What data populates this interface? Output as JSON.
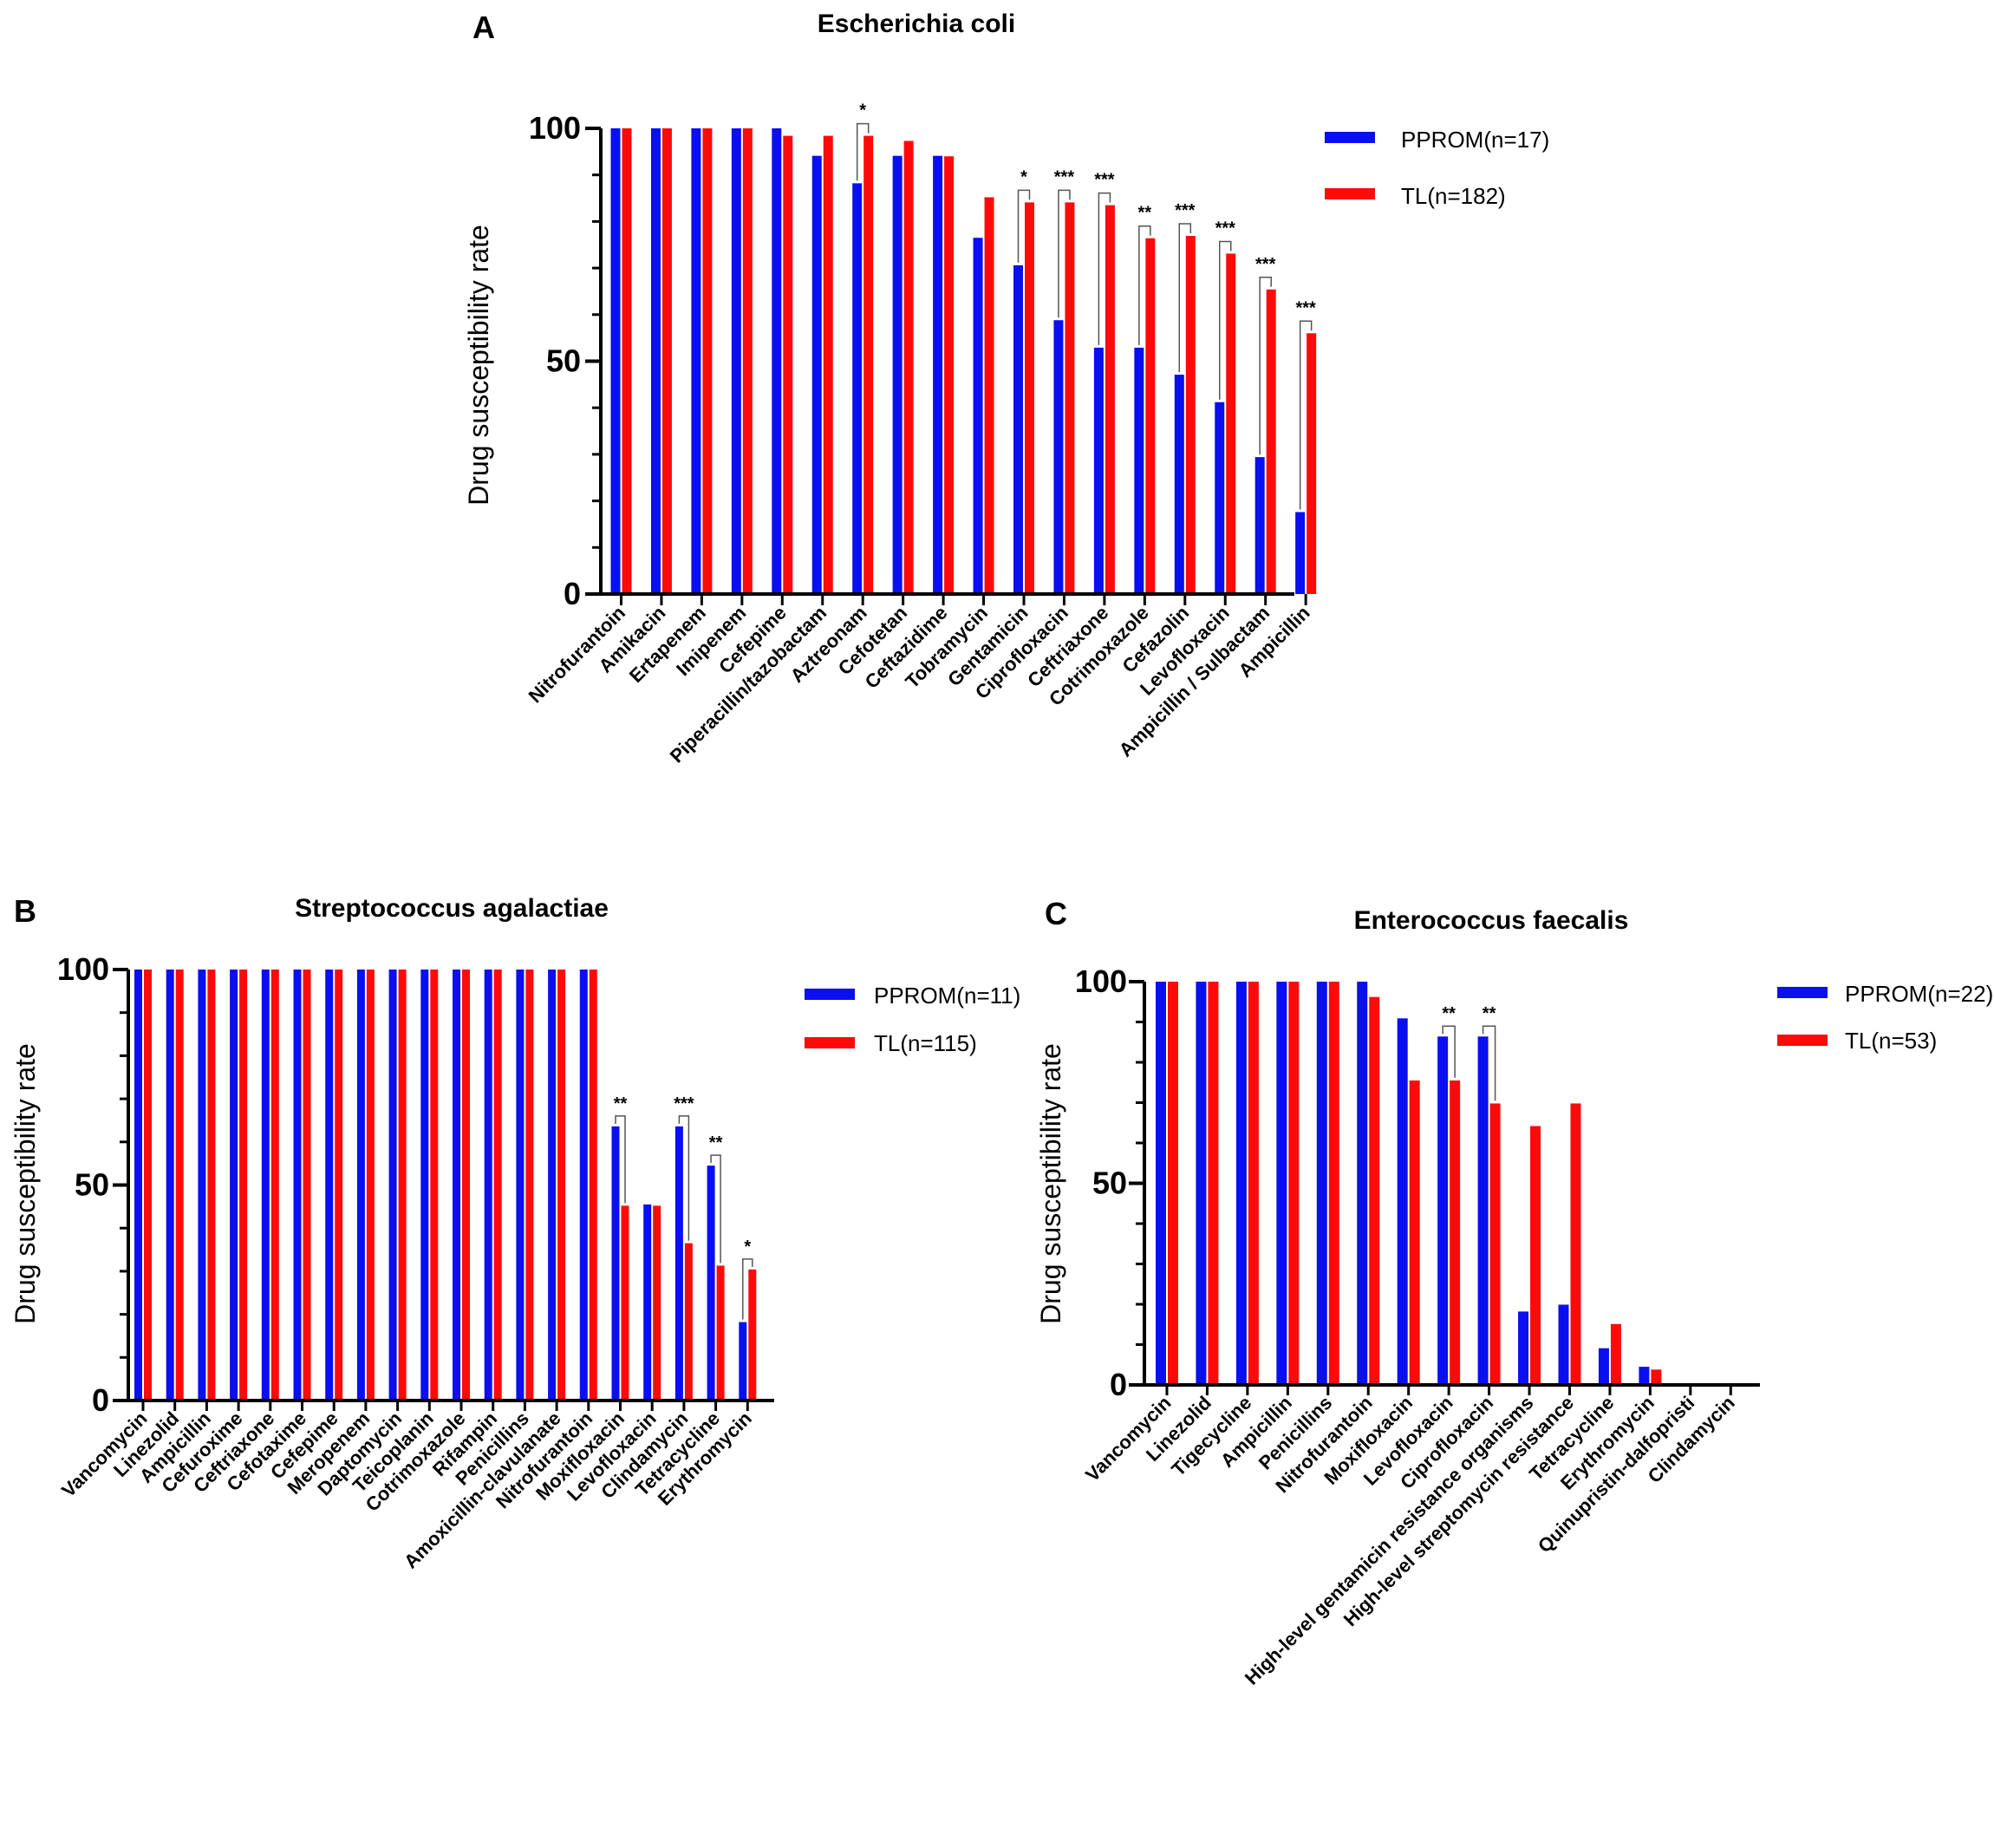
{
  "colors": {
    "series1": "#0a0ff0",
    "series2": "#ff0a0a",
    "axis": "#000000"
  },
  "charts": [
    {
      "panel": "A",
      "type": "bar",
      "title": "Escherichia coli",
      "ylabel": "Drug susceptibility rate",
      "xlabel": "",
      "ylim": [
        0,
        100
      ],
      "yticks": [
        0,
        50,
        100
      ],
      "series": [
        {
          "name": "PPROM(n=17)",
          "color": "#0a0ff0",
          "values": [
            100,
            100,
            100,
            100,
            100,
            94.1,
            88.2,
            94.1,
            94.1,
            76.5,
            70.6,
            58.8,
            52.9,
            52.9,
            47.1,
            41.2,
            29.4,
            17.6
          ]
        },
        {
          "name": "TL(n=182)",
          "color": "#ff0a0a",
          "values": [
            100,
            100,
            100,
            100,
            98.4,
            98.4,
            98.4,
            97.3,
            94.0,
            85.2,
            84.1,
            84.1,
            83.5,
            76.4,
            76.9,
            73.1,
            65.4,
            56.0
          ]
        }
      ],
      "categories": [
        "Nitrofurantoin",
        "Amikacin",
        "Ertapenem",
        "Imipenem",
        "Cefepime",
        "Piperacillin/tazobactam",
        "Aztreonam",
        "Cefotetan",
        "Ceftazidime",
        "Tobramycin",
        "Gentamicin",
        "Ciprofloxacin",
        "Ceftriaxone",
        "Cotrimoxazole",
        "Cefazolin",
        "Levofloxacin",
        "Ampicillin / Sulbactam",
        "Ampicillin"
      ],
      "significance": [
        {
          "index": 6,
          "label": "*"
        },
        {
          "index": 10,
          "label": "*"
        },
        {
          "index": 11,
          "label": "***"
        },
        {
          "index": 12,
          "label": "***"
        },
        {
          "index": 13,
          "label": "**"
        },
        {
          "index": 14,
          "label": "***"
        },
        {
          "index": 15,
          "label": "***"
        },
        {
          "index": 16,
          "label": "***"
        },
        {
          "index": 17,
          "label": "***"
        }
      ],
      "legend_position": "top-right"
    },
    {
      "panel": "B",
      "type": "bar",
      "title": "Streptococcus agalactiae",
      "ylabel": "Drug susceptibility rate",
      "xlabel": "",
      "ylim": [
        0,
        100
      ],
      "yticks": [
        0,
        50,
        100
      ],
      "series": [
        {
          "name": "PPROM(n=11)",
          "color": "#0a0ff0",
          "values": [
            100,
            100,
            100,
            100,
            100,
            100,
            100,
            100,
            100,
            100,
            100,
            100,
            100,
            100,
            100,
            63.6,
            45.5,
            63.6,
            54.5,
            18.2
          ]
        },
        {
          "name": "TL(n=115)",
          "color": "#ff0a0a",
          "values": [
            100,
            100,
            100,
            100,
            100,
            100,
            100,
            100,
            100,
            100,
            100,
            100,
            100,
            100,
            100,
            45.2,
            45.2,
            36.5,
            31.3,
            30.4
          ]
        }
      ],
      "categories": [
        "Vancomycin",
        "Linezolid",
        "Ampicillin",
        "Cefuroxime",
        "Ceftriaxone",
        "Cefotaxime",
        "Cefepime",
        "Meropenem",
        "Daptomycin",
        "Teicoplanin",
        "Cotrimoxazole",
        "Rifampin",
        "Penicillins",
        "Amoxicillin-clavulanate",
        "Nitrofurantoin",
        "Moxifloxacin",
        "Levofloxacin",
        "Clindamycin",
        "Tetracycline",
        "Erythromycin"
      ],
      "significance": [
        {
          "index": 15,
          "label": "**"
        },
        {
          "index": 17,
          "label": "***"
        },
        {
          "index": 18,
          "label": "**"
        },
        {
          "index": 19,
          "label": "*"
        }
      ],
      "legend_position": "top-right"
    },
    {
      "panel": "C",
      "type": "bar",
      "title": "Enterococcus faecalis",
      "ylabel": "Drug susceptibility rate",
      "xlabel": "",
      "ylim": [
        0,
        100
      ],
      "yticks": [
        0,
        50,
        100
      ],
      "series": [
        {
          "name": "PPROM(n=22)",
          "color": "#0a0ff0",
          "values": [
            100,
            100,
            100,
            100,
            100,
            100,
            90.9,
            86.4,
            86.4,
            18.2,
            19.9,
            9.1,
            4.5,
            0,
            0
          ]
        },
        {
          "name": "TL(n=53)",
          "color": "#ff0a0a",
          "values": [
            100,
            100,
            100,
            100,
            100,
            96.2,
            75.5,
            75.5,
            69.8,
            64.2,
            69.8,
            15.1,
            3.8,
            0,
            0
          ]
        }
      ],
      "categories": [
        "Vancomycin",
        "Linezolid",
        "Tigecycline",
        "Ampicillin",
        "Penicillins",
        "Nitrofurantoin",
        "Moxifloxacin",
        "Levofloxacin",
        "Ciprofloxacin",
        "High-level gentamicin resistance organisms",
        "High-level streptomycin resistance",
        "Tetracycline",
        "Erythromycin",
        "Quinupristin-dalfopristi",
        "Clindamycin"
      ],
      "significance": [
        {
          "index": 7,
          "label": "**"
        },
        {
          "index": 8,
          "label": "**"
        }
      ],
      "legend_position": "top-right"
    }
  ]
}
